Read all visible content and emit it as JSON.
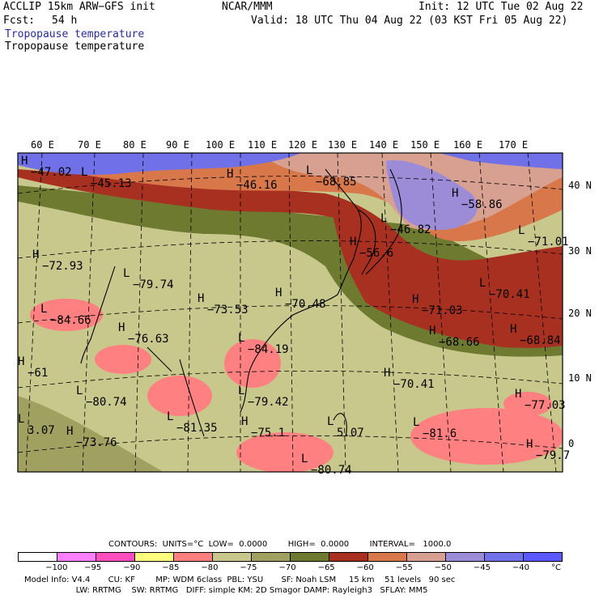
{
  "header": {
    "model": "ACCLIP 15km ARW−GFS init",
    "center": "NCAR/MMM",
    "init": "Init: 12 UTC Tue 02 Aug 22",
    "fcst_label": "Fcst:",
    "fcst_value": "54 h",
    "valid": "Valid: 18 UTC Thu 04 Aug 22 (03 KST Fri 05 Aug 22)",
    "field_title_1": "Tropopause temperature",
    "field_title_2": "Tropopause temperature"
  },
  "map": {
    "lon_labels": [
      "60 E",
      "70 E",
      "80 E",
      "90 E",
      "100 E",
      "110 E",
      "120 E",
      "130 E",
      "140 E",
      "150 E",
      "160 E",
      "170 E"
    ],
    "lat_labels": [
      "40 N",
      "30 N",
      "20 N",
      "10 N",
      "0"
    ],
    "markers": [
      {
        "type": "H",
        "value": "−47.02"
      },
      {
        "type": "L",
        "value": "−45.13"
      },
      {
        "type": "H",
        "value": "−46.16"
      },
      {
        "type": "L",
        "value": "−68.85"
      },
      {
        "type": "H",
        "value": "−58.86"
      },
      {
        "type": "L",
        "value": "−46.82"
      },
      {
        "type": "H",
        "value": "−56.6"
      },
      {
        "type": "L",
        "value": "−71.01"
      },
      {
        "type": "H",
        "value": "−72.93"
      },
      {
        "type": "L",
        "value": "−79.74"
      },
      {
        "type": "H",
        "value": "−73.53"
      },
      {
        "type": "H",
        "value": "−70.48"
      },
      {
        "type": "L",
        "value": "−70.41"
      },
      {
        "type": "H",
        "value": "−71.03"
      },
      {
        "type": "L",
        "value": "−84.66"
      },
      {
        "type": "H",
        "value": "−76.63"
      },
      {
        "type": "L",
        "value": "−84.19"
      },
      {
        "type": "H",
        "value": "−68.66"
      },
      {
        "type": "H",
        "value": "−68.84"
      },
      {
        "type": "H",
        "value": "−70.41"
      },
      {
        "type": "L",
        "value": "−80.74"
      },
      {
        "type": "L",
        "value": "−79.42"
      },
      {
        "type": "H",
        "value": "−77.03"
      },
      {
        "type": "L",
        "value": "−81.35"
      },
      {
        "type": "H",
        "value": "−75.1"
      },
      {
        "type": "L",
        "value": "5.07"
      },
      {
        "type": "L",
        "value": "−81.6"
      },
      {
        "type": "H",
        "value": "−73.76"
      },
      {
        "type": "H",
        "value": "−79.7"
      },
      {
        "type": "L",
        "value": "−80.74"
      },
      {
        "type": "H",
        "value": "−61"
      },
      {
        "type": "L",
        "value": "3.07"
      }
    ]
  },
  "contours_line": "CONTOURS:  UNITS=°C  LOW=  0.0000        HIGH=  0.0000        INTERVAL=   1000.0",
  "colorbar": {
    "colors": [
      "#ffffff",
      "#ff80ff",
      "#ff4dc0",
      "#ffff80",
      "#ff8080",
      "#c8c88c",
      "#a0a060",
      "#6e7a30",
      "#a83020",
      "#d8784a",
      "#d8a090",
      "#9c8cd8",
      "#7070e8",
      "#5a5aff"
    ],
    "labels": [
      "−100",
      "−95",
      "−90",
      "−85",
      "−80",
      "−75",
      "−70",
      "−65",
      "−60",
      "−55",
      "−50",
      "−45",
      "−40",
      "°C"
    ]
  },
  "footer": {
    "line1": "Model Info: V4.4       CU: KF        MP: WDM 6class  PBL: YSU       SF: Noah LSM     15 km    51 levels   90 sec",
    "line2": "                    LW: RRTMG    SW: RRTMG   DIFF: simple KM: 2D Smagor DAMP: Rayleigh3   SFLAY: MM5"
  }
}
